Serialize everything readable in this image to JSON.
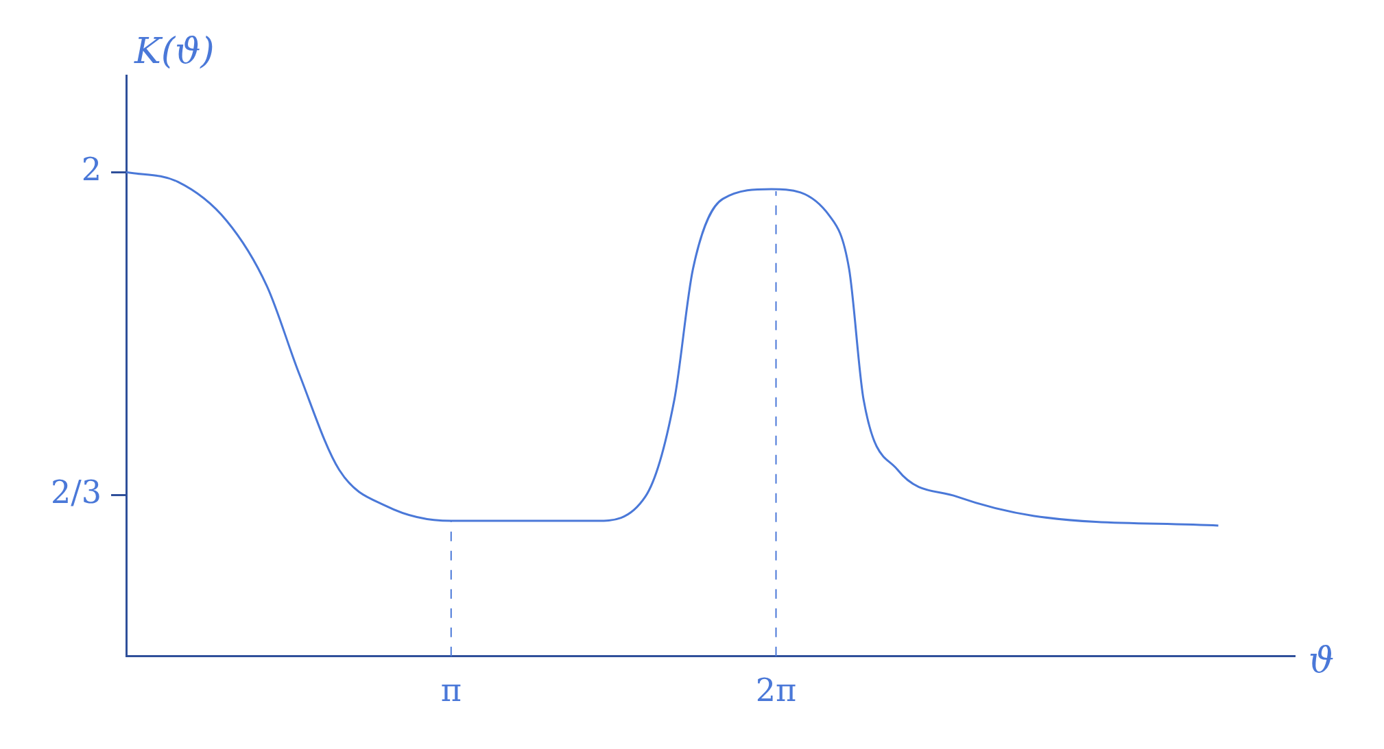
{
  "chart_data": {
    "type": "line",
    "xlabel": "ϑ",
    "ylabel": "K(ϑ)",
    "x": [
      0,
      0.5,
      0.97,
      1.36,
      1.67,
      2.06,
      2.52,
      3.14,
      4.55,
      5.02,
      5.3,
      5.48,
      5.77,
      6.24,
      6.8,
      6.99,
      7.13,
      7.46,
      8.03,
      8.78,
      10.56
    ],
    "series": [
      {
        "color": "#4a78d8",
        "values": [
          2.0,
          1.96,
          1.8,
          1.53,
          1.17,
          0.77,
          0.62,
          0.56,
          0.56,
          0.66,
          1.06,
          1.6,
          1.89,
          1.93,
          1.82,
          1.6,
          1.06,
          0.77,
          0.66,
          0.58,
          0.54
        ]
      }
    ],
    "xlim": [
      0,
      11.3
    ],
    "ylim": [
      0,
      2.4
    ],
    "xticks": [
      {
        "value": 3.1416,
        "label": "π"
      },
      {
        "value": 6.2832,
        "label": "2π"
      }
    ],
    "yticks": [
      {
        "value": 0.6667,
        "label": "2/3"
      },
      2
    ],
    "ref_lines": [
      {
        "axis": "x",
        "value": 3.1416,
        "line_style": "dashed"
      },
      {
        "axis": "x",
        "value": 6.2832,
        "line_style": "dashed"
      }
    ],
    "grid": false,
    "legend": false,
    "marker": "none",
    "line_style": "solid"
  }
}
